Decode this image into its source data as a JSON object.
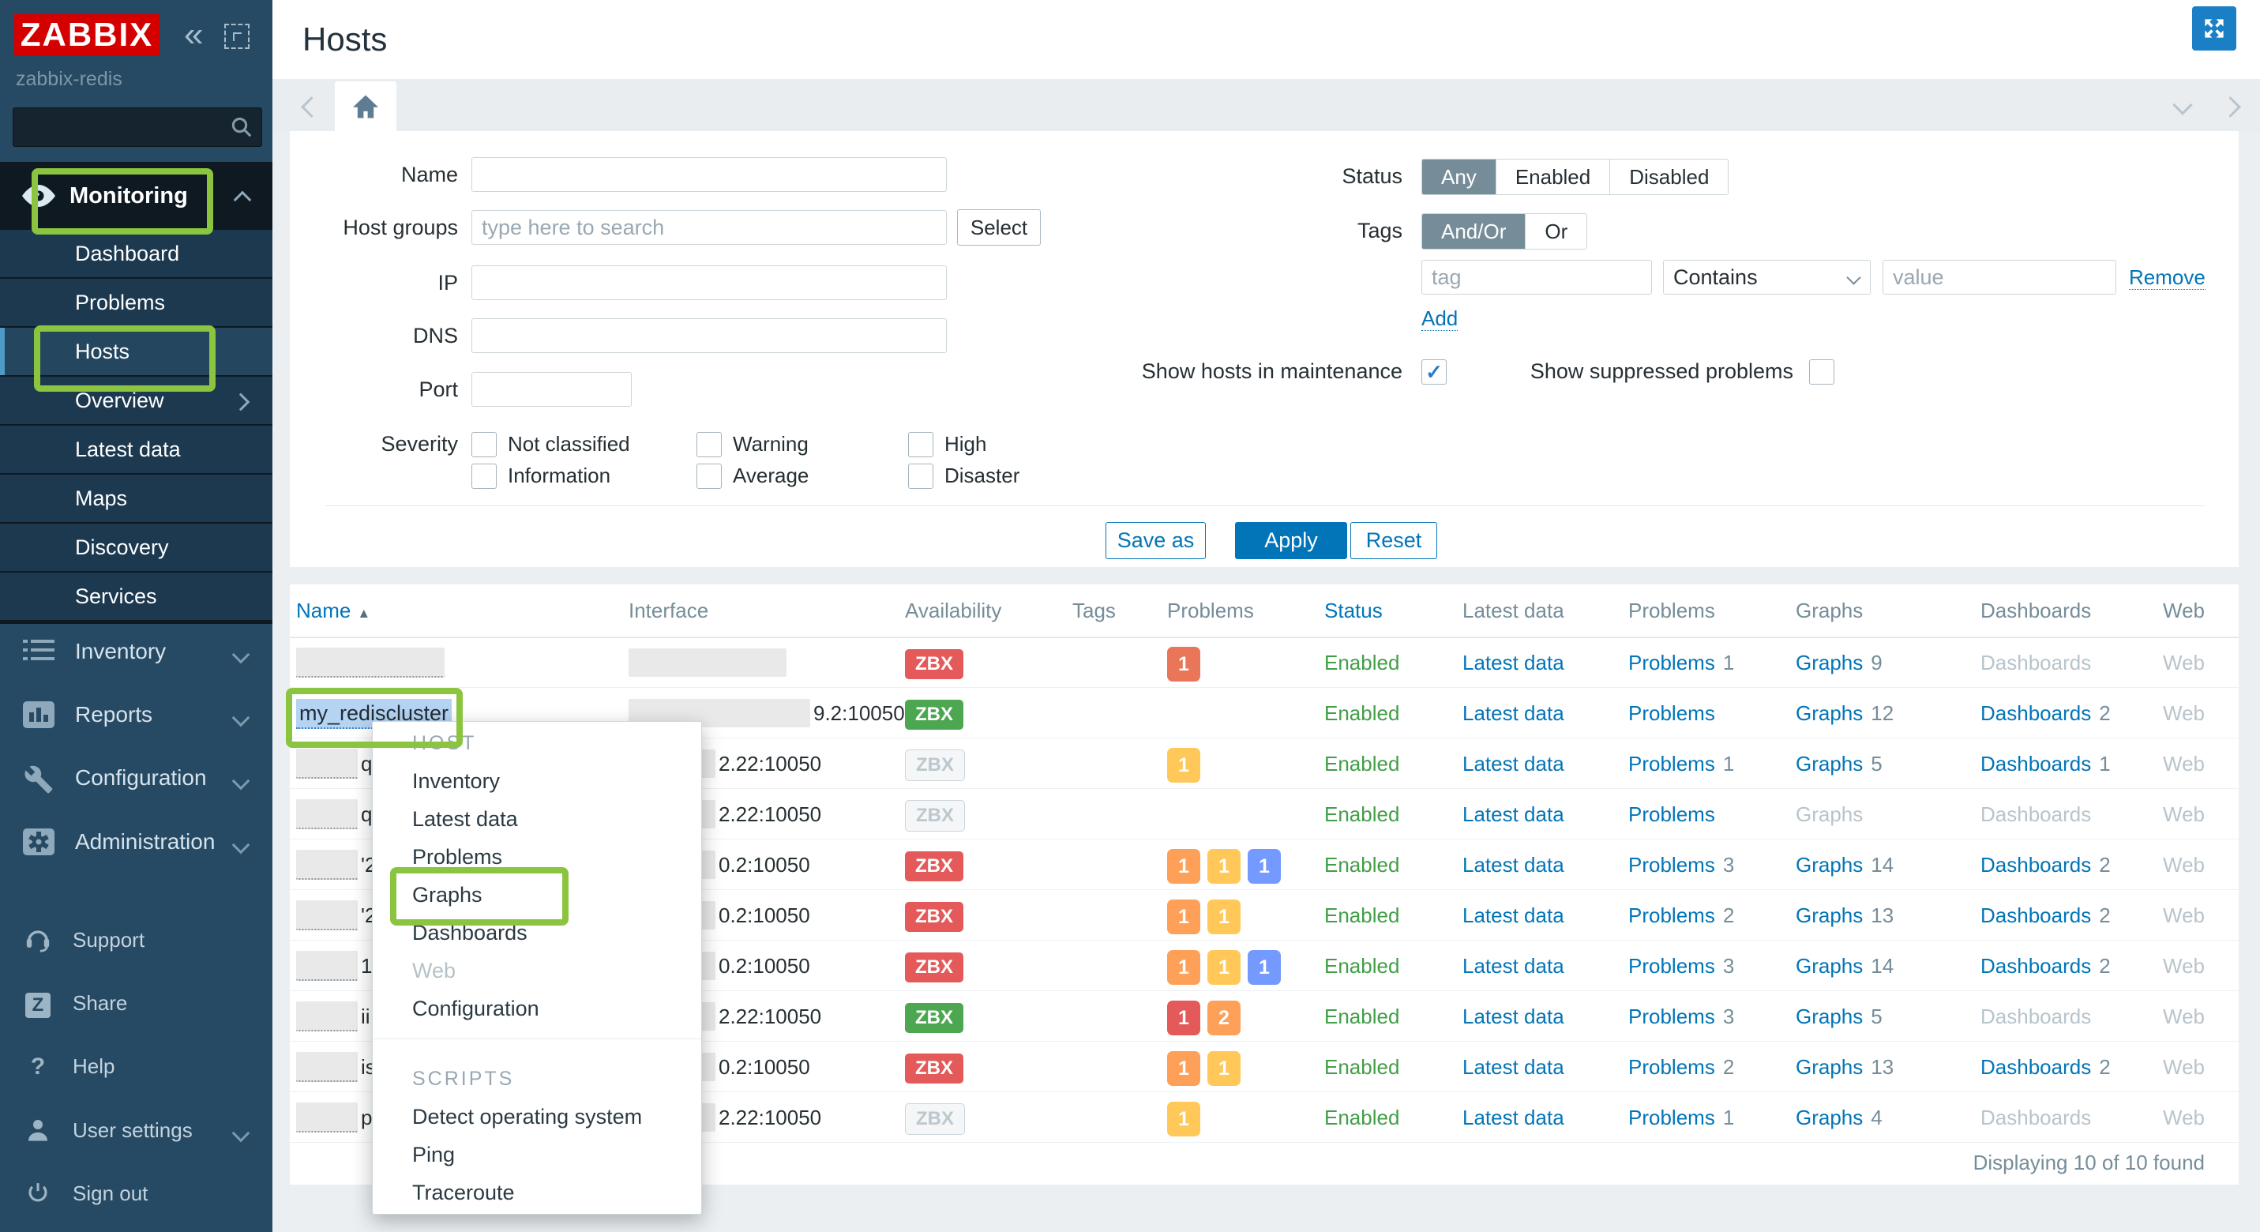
{
  "colors": {
    "accent_blue": "#0275b8",
    "annotation_green": "#8bc53f",
    "enabled_green": "#429e47",
    "apply_button_blue": "#0275b8",
    "severity": {
      "disaster": "#e45959",
      "high": "#e97659",
      "average": "#ffa059",
      "warning": "#ffc859",
      "info": "#7499ff"
    },
    "availability": {
      "red": "#e45959",
      "green": "#4ca750"
    }
  },
  "sidebar": {
    "logo": "ZABBIX",
    "server_name": "zabbix-redis",
    "monitoring": {
      "label": "Monitoring",
      "items": [
        {
          "label": "Dashboard"
        },
        {
          "label": "Problems"
        },
        {
          "label": "Hosts",
          "selected": true
        },
        {
          "label": "Overview",
          "caret": true
        },
        {
          "label": "Latest data"
        },
        {
          "label": "Maps"
        },
        {
          "label": "Discovery"
        },
        {
          "label": "Services"
        }
      ]
    },
    "main_items": [
      {
        "label": "Inventory"
      },
      {
        "label": "Reports"
      },
      {
        "label": "Configuration"
      },
      {
        "label": "Administration"
      }
    ],
    "footer_items": [
      {
        "label": "Support"
      },
      {
        "label": "Share"
      },
      {
        "label": "Help"
      },
      {
        "label": "User settings",
        "caret": true
      },
      {
        "label": "Sign out"
      }
    ]
  },
  "header": {
    "title": "Hosts"
  },
  "filter": {
    "name_label": "Name",
    "host_groups_label": "Host groups",
    "host_groups_placeholder": "type here to search",
    "select_button": "Select",
    "ip_label": "IP",
    "dns_label": "DNS",
    "port_label": "Port",
    "severity_label": "Severity",
    "severity_col1": [
      "Not classified",
      "Information"
    ],
    "severity_col2": [
      "Warning",
      "Average"
    ],
    "severity_col3": [
      "High",
      "Disaster"
    ],
    "status_label": "Status",
    "status_options": [
      "Any",
      "Enabled",
      "Disabled"
    ],
    "status_selected": "Any",
    "tags_label": "Tags",
    "tags_options": [
      "And/Or",
      "Or"
    ],
    "tags_selected": "And/Or",
    "tag_placeholder": "tag",
    "operator_value": "Contains",
    "value_placeholder": "value",
    "remove_link": "Remove",
    "add_link": "Add",
    "maintenance_label": "Show hosts in maintenance",
    "maintenance_checked": true,
    "suppressed_label": "Show suppressed problems",
    "suppressed_checked": false,
    "save_as": "Save as",
    "apply": "Apply",
    "reset": "Reset"
  },
  "table": {
    "headers": [
      {
        "label": "Name",
        "sortable": true,
        "sort": "asc"
      },
      {
        "label": "Interface"
      },
      {
        "label": "Availability"
      },
      {
        "label": "Tags"
      },
      {
        "label": "Problems"
      },
      {
        "label": "Status",
        "sortable": true
      },
      {
        "label": "Latest data"
      },
      {
        "label": "Problems"
      },
      {
        "label": "Graphs"
      },
      {
        "label": "Dashboards"
      },
      {
        "label": "Web"
      }
    ],
    "rows": [
      {
        "name_text": "",
        "name_fragment": "",
        "name_redacted": true,
        "iface_visible": "",
        "iface_redacted": true,
        "availability": "red",
        "problems": [
          {
            "sev": "high",
            "count": "1"
          }
        ],
        "status": "Enabled",
        "latest": "Latest data",
        "plabel": "Problems",
        "pcount": "1",
        "glabel": "Graphs",
        "gcount": "9",
        "genabled": true,
        "dlabel": "Dashboards",
        "dcount": "",
        "denabled": false,
        "web": "Web"
      },
      {
        "name_text": "my_rediscluster",
        "name_fragment": "",
        "name_redacted": false,
        "iface_visible": "9.2:10050",
        "iface_redacted": true,
        "availability": "green",
        "problems": [],
        "status": "Enabled",
        "latest": "Latest data",
        "plabel": "Problems",
        "pcount": "",
        "glabel": "Graphs",
        "gcount": "12",
        "genabled": true,
        "dlabel": "Dashboards",
        "dcount": "2",
        "denabled": true,
        "web": "Web"
      },
      {
        "name_text": "",
        "name_fragment": "q",
        "name_redacted": true,
        "iface_visible": "2.22:10050",
        "iface_redacted": true,
        "availability": "gray",
        "problems": [
          {
            "sev": "warning",
            "count": "1"
          }
        ],
        "status": "Enabled",
        "latest": "Latest data",
        "plabel": "Problems",
        "pcount": "1",
        "glabel": "Graphs",
        "gcount": "5",
        "genabled": true,
        "dlabel": "Dashboards",
        "dcount": "1",
        "denabled": true,
        "web": "Web"
      },
      {
        "name_text": "",
        "name_fragment": "q",
        "name_redacted": true,
        "iface_visible": "2.22:10050",
        "iface_redacted": true,
        "availability": "gray",
        "problems": [],
        "status": "Enabled",
        "latest": "Latest data",
        "plabel": "Problems",
        "pcount": "",
        "glabel": "Graphs",
        "gcount": "",
        "genabled": false,
        "dlabel": "Dashboards",
        "dcount": "",
        "denabled": false,
        "web": "Web"
      },
      {
        "name_text": "",
        "name_fragment": "'2",
        "name_redacted": true,
        "iface_visible": "0.2:10050",
        "iface_redacted": true,
        "availability": "red",
        "problems": [
          {
            "sev": "average",
            "count": "1"
          },
          {
            "sev": "warning",
            "count": "1"
          },
          {
            "sev": "info",
            "count": "1"
          }
        ],
        "status": "Enabled",
        "latest": "Latest data",
        "plabel": "Problems",
        "pcount": "3",
        "glabel": "Graphs",
        "gcount": "14",
        "genabled": true,
        "dlabel": "Dashboards",
        "dcount": "2",
        "denabled": true,
        "web": "Web"
      },
      {
        "name_text": "",
        "name_fragment": "'2",
        "name_redacted": true,
        "iface_visible": "0.2:10050",
        "iface_redacted": true,
        "availability": "red",
        "problems": [
          {
            "sev": "average",
            "count": "1"
          },
          {
            "sev": "warning",
            "count": "1"
          }
        ],
        "status": "Enabled",
        "latest": "Latest data",
        "plabel": "Problems",
        "pcount": "2",
        "glabel": "Graphs",
        "gcount": "13",
        "genabled": true,
        "dlabel": "Dashboards",
        "dcount": "2",
        "denabled": true,
        "web": "Web"
      },
      {
        "name_text": "",
        "name_fragment": "1",
        "name_redacted": true,
        "iface_visible": "0.2:10050",
        "iface_redacted": true,
        "availability": "red",
        "problems": [
          {
            "sev": "average",
            "count": "1"
          },
          {
            "sev": "warning",
            "count": "1"
          },
          {
            "sev": "info",
            "count": "1"
          }
        ],
        "status": "Enabled",
        "latest": "Latest data",
        "plabel": "Problems",
        "pcount": "3",
        "glabel": "Graphs",
        "gcount": "14",
        "genabled": true,
        "dlabel": "Dashboards",
        "dcount": "2",
        "denabled": true,
        "web": "Web"
      },
      {
        "name_text": "",
        "name_fragment": "ii",
        "name_redacted": true,
        "iface_visible": "2.22:10050",
        "iface_redacted": true,
        "availability": "green",
        "problems": [
          {
            "sev": "disaster",
            "count": "1"
          },
          {
            "sev": "average",
            "count": "2"
          }
        ],
        "status": "Enabled",
        "latest": "Latest data",
        "plabel": "Problems",
        "pcount": "3",
        "glabel": "Graphs",
        "gcount": "5",
        "genabled": true,
        "dlabel": "Dashboards",
        "dcount": "",
        "denabled": false,
        "web": "Web"
      },
      {
        "name_text": "",
        "name_fragment": "is",
        "name_redacted": true,
        "iface_visible": "0.2:10050",
        "iface_redacted": true,
        "availability": "red",
        "problems": [
          {
            "sev": "average",
            "count": "1"
          },
          {
            "sev": "warning",
            "count": "1"
          }
        ],
        "status": "Enabled",
        "latest": "Latest data",
        "plabel": "Problems",
        "pcount": "2",
        "glabel": "Graphs",
        "gcount": "13",
        "genabled": true,
        "dlabel": "Dashboards",
        "dcount": "2",
        "denabled": true,
        "web": "Web"
      },
      {
        "name_text": "",
        "name_fragment": "pc",
        "name_redacted": true,
        "iface_visible": "2.22:10050",
        "iface_redacted": true,
        "availability": "gray",
        "problems": [
          {
            "sev": "warning",
            "count": "1"
          }
        ],
        "status": "Enabled",
        "latest": "Latest data",
        "plabel": "Problems",
        "pcount": "1",
        "glabel": "Graphs",
        "gcount": "4",
        "genabled": true,
        "dlabel": "Dashboards",
        "dcount": "",
        "denabled": false,
        "web": "Web"
      }
    ],
    "availability_badge": "ZBX",
    "footer": "Displaying 10 of 10 found"
  },
  "context_menu": {
    "host_header": "HOST",
    "host_items": [
      {
        "label": "Inventory"
      },
      {
        "label": "Latest data"
      },
      {
        "label": "Problems"
      },
      {
        "label": "Graphs",
        "highlighted": true
      },
      {
        "label": "Dashboards"
      },
      {
        "label": "Web",
        "disabled": true
      },
      {
        "label": "Configuration"
      }
    ],
    "scripts_header": "SCRIPTS",
    "script_items": [
      {
        "label": "Detect operating system"
      },
      {
        "label": "Ping"
      },
      {
        "label": "Traceroute"
      }
    ]
  }
}
